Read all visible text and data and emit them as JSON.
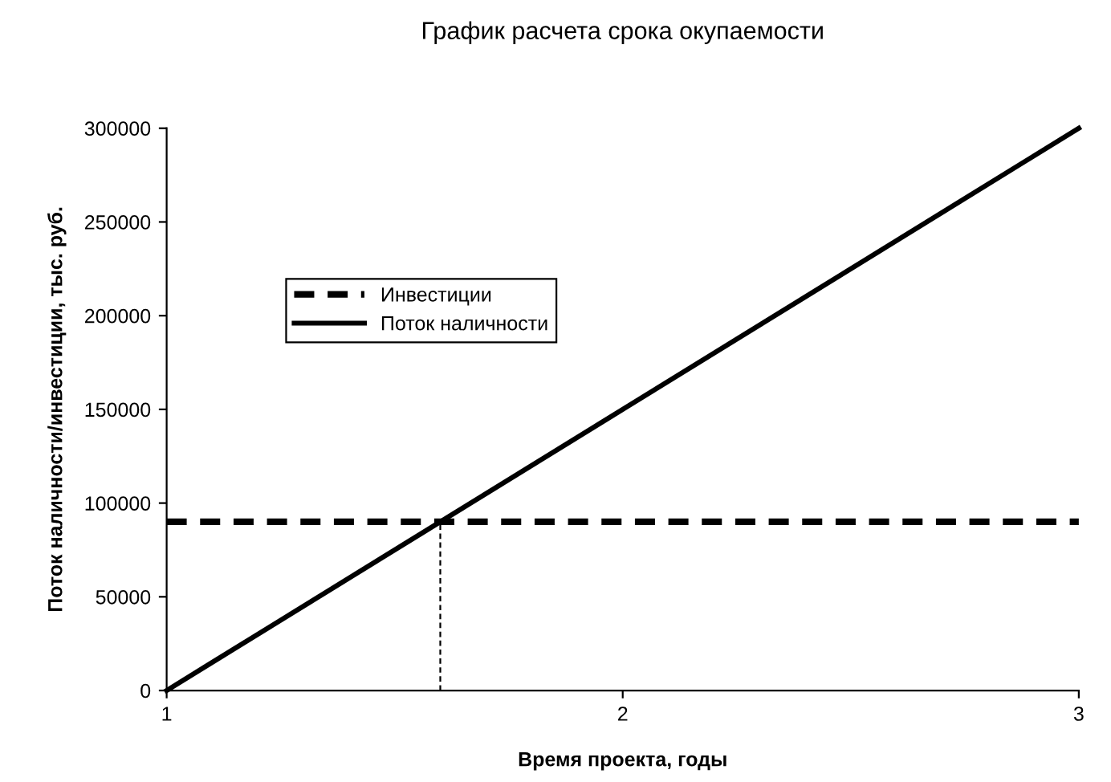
{
  "chart_data": {
    "type": "line",
    "title": "График расчета срока окупаемости",
    "xlabel": "Время проекта, годы",
    "ylabel": "Поток наличности/инвестиции, тыс. руб.",
    "series": [
      {
        "name": "Инвестиции",
        "color": "#000000",
        "x": [
          1,
          3
        ],
        "values": [
          90000,
          90000
        ],
        "line_style": "dashed"
      },
      {
        "name": "Поток наличности",
        "color": "#000000",
        "x": [
          1,
          3
        ],
        "values": [
          0,
          300000
        ],
        "line_style": "solid"
      },
      {
        "color": "#000000",
        "x": [
          1.6,
          1.6
        ],
        "values": [
          0,
          90000
        ],
        "line_style": "dotted"
      }
    ],
    "xlim": [
      1,
      3
    ],
    "xticks": [
      1,
      2,
      3
    ],
    "ylim": [
      0,
      300000
    ],
    "yticks": [
      0,
      50000,
      100000,
      150000,
      200000,
      250000,
      300000
    ],
    "grid": false,
    "legend": "top left",
    "marker": "none"
  }
}
